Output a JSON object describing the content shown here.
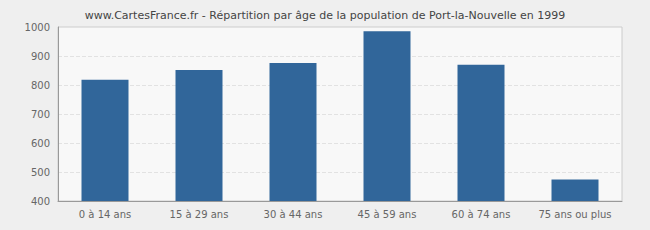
{
  "chart_data": {
    "type": "bar",
    "title": "www.CartesFrance.fr - Répartition par âge de la population de Port-la-Nouvelle en 1999",
    "categories": [
      "0 à 14 ans",
      "15 à 29 ans",
      "30 à 44 ans",
      "45 à 59 ans",
      "60 à 74 ans",
      "75 ans ou plus"
    ],
    "values": [
      818,
      852,
      876,
      985,
      870,
      474
    ],
    "color": "#31669a",
    "ylim": [
      400,
      1000
    ],
    "yticks": [
      400,
      500,
      600,
      700,
      800,
      900,
      1000
    ],
    "grid": true
  }
}
